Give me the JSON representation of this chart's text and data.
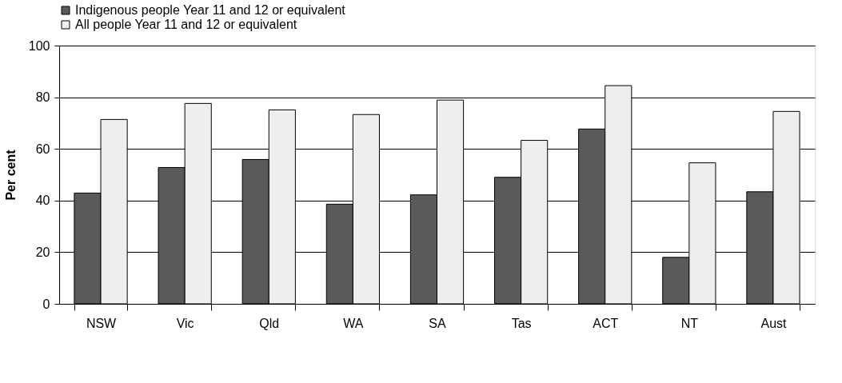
{
  "chart_data": {
    "type": "bar",
    "ylabel": "Per cent",
    "categories": [
      "NSW",
      "Vic",
      "Qld",
      "WA",
      "SA",
      "Tas",
      "ACT",
      "NT",
      "Aust"
    ],
    "series": [
      {
        "name": "Indigenous people Year 11 and 12 or equivalent",
        "color": "#5a5a5a",
        "values": [
          42.9,
          52.8,
          55.9,
          38.6,
          42.2,
          49.0,
          67.7,
          18.0,
          43.4
        ]
      },
      {
        "name": "All people Year 11 and 12 or equivalent",
        "color": "#eeeeee",
        "values": [
          71.4,
          77.6,
          75.1,
          73.3,
          78.9,
          63.3,
          84.5,
          54.6,
          74.5
        ]
      }
    ],
    "ylim": [
      0,
      100
    ],
    "yticks": [
      0,
      20,
      40,
      60,
      80,
      100
    ],
    "grid": "y",
    "legend": "top"
  }
}
